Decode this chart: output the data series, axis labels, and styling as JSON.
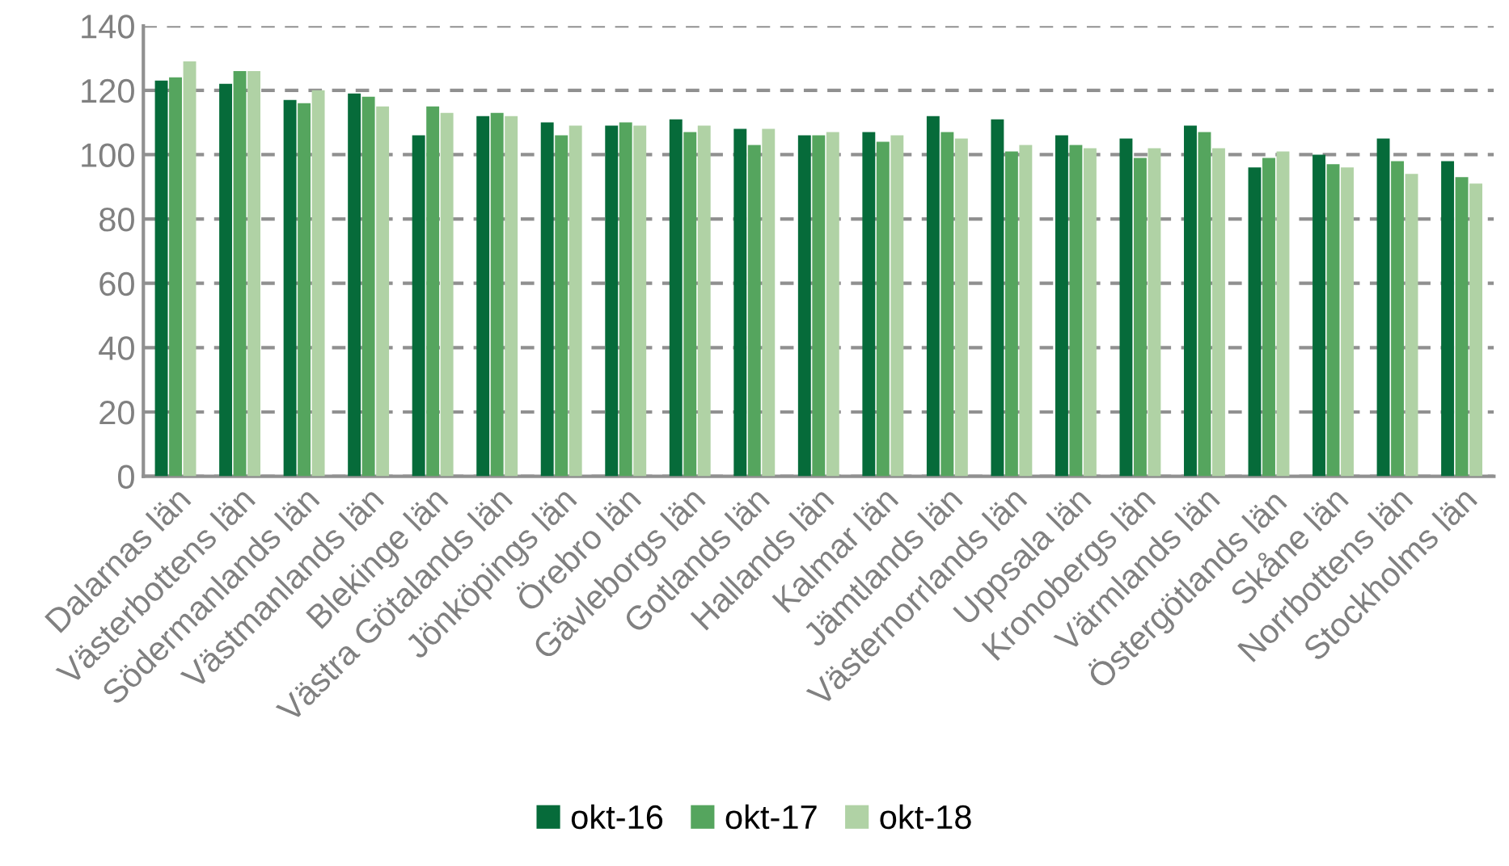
{
  "chart_data": {
    "type": "bar",
    "categories": [
      "Dalarnas län",
      "Västerbottens län",
      "Södermanlands län",
      "Västmanlands län",
      "Blekinge län",
      "Västra Götalands län",
      "Jönköpings län",
      "Örebro län",
      "Gävleborgs län",
      "Gotlands län",
      "Hallands län",
      "Kalmar län",
      "Jämtlands län",
      "Västernorrlands län",
      "Uppsala län",
      "Kronobergs län",
      "Värmlands län",
      "Östergötlands län",
      "Skåne län",
      "Norrbottens län",
      "Stockholms län"
    ],
    "series": [
      {
        "name": "okt-16",
        "color": "#066b3a",
        "values": [
          123,
          122,
          117,
          119,
          106,
          112,
          110,
          109,
          111,
          108,
          106,
          107,
          112,
          111,
          106,
          105,
          109,
          96,
          100,
          105,
          98
        ]
      },
      {
        "name": "okt-17",
        "color": "#55a55e",
        "values": [
          124,
          126,
          116,
          118,
          115,
          113,
          106,
          110,
          107,
          103,
          106,
          104,
          107,
          101,
          103,
          99,
          107,
          99,
          97,
          98,
          93
        ]
      },
      {
        "name": "okt-18",
        "color": "#b0d2a5",
        "values": [
          129,
          126,
          120,
          115,
          113,
          112,
          109,
          109,
          109,
          108,
          107,
          106,
          105,
          103,
          102,
          102,
          102,
          101,
          96,
          94,
          91
        ]
      }
    ],
    "ylim": [
      0,
      140
    ],
    "yticks": [
      0,
      20,
      40,
      60,
      80,
      100,
      120,
      140
    ],
    "grid": "y",
    "legend": "bottom"
  }
}
